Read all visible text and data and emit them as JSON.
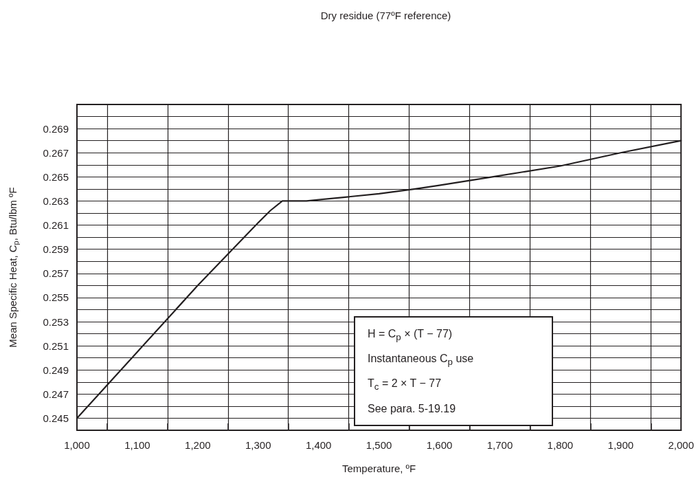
{
  "chart_data": {
    "type": "line",
    "title": "Dry residue (77ºF reference)",
    "xlabel": "Temperature, ºF",
    "ylabel": "Mean Specific Heat, C$_{p}$, Btu/lbm ºF",
    "x": [
      1000,
      1100,
      1200,
      1300,
      1320,
      1340,
      1380,
      1400,
      1500,
      1560,
      1600,
      1700,
      1800,
      1900,
      2000
    ],
    "series": [
      {
        "color": "#231f20",
        "values": [
          0.245,
          0.2505,
          0.256,
          0.2612,
          0.2622,
          0.263,
          0.263,
          0.2631,
          0.2636,
          0.264,
          0.2643,
          0.2651,
          0.2659,
          0.267,
          0.268
        ]
      }
    ],
    "xlim": [
      1000,
      2000
    ],
    "xticks": [
      {
        "value": 1000,
        "label": "1,000"
      },
      {
        "value": 1050,
        "label": null
      },
      {
        "value": 1100,
        "label": "1,100"
      },
      {
        "value": 1150,
        "label": null
      },
      {
        "value": 1200,
        "label": "1,200"
      },
      {
        "value": 1250,
        "label": null
      },
      {
        "value": 1300,
        "label": "1,300"
      },
      {
        "value": 1350,
        "label": null
      },
      {
        "value": 1400,
        "label": "1,400"
      },
      {
        "value": 1450,
        "label": null
      },
      {
        "value": 1500,
        "label": "1,500"
      },
      {
        "value": 1550,
        "label": null
      },
      {
        "value": 1600,
        "label": "1,600"
      },
      {
        "value": 1650,
        "label": null
      },
      {
        "value": 1700,
        "label": "1,700"
      },
      {
        "value": 1750,
        "label": null
      },
      {
        "value": 1800,
        "label": "1,800"
      },
      {
        "value": 1850,
        "label": null
      },
      {
        "value": 1900,
        "label": "1,900"
      },
      {
        "value": 1950,
        "label": null
      },
      {
        "value": 2000,
        "label": "2,000"
      }
    ],
    "ylim": [
      0.244,
      0.271
    ],
    "yticks": [
      {
        "value": 0.244,
        "label": null
      },
      0.245,
      {
        "value": 0.246,
        "label": null
      },
      0.247,
      {
        "value": 0.248,
        "label": null
      },
      0.249,
      {
        "value": 0.25,
        "label": null
      },
      0.251,
      {
        "value": 0.252,
        "label": null
      },
      0.253,
      {
        "value": 0.254,
        "label": null
      },
      0.255,
      {
        "value": 0.256,
        "label": null
      },
      0.257,
      {
        "value": 0.258,
        "label": null
      },
      0.259,
      {
        "value": 0.26,
        "label": null
      },
      0.261,
      {
        "value": 0.262,
        "label": null
      },
      0.263,
      {
        "value": 0.264,
        "label": null
      },
      0.265,
      {
        "value": 0.266,
        "label": null
      },
      0.267,
      {
        "value": 0.268,
        "label": null
      },
      0.269,
      {
        "value": 0.27,
        "label": null
      },
      {
        "value": 0.271,
        "label": null
      }
    ],
    "grid": true,
    "marker": "none",
    "line_style": "solid",
    "annotations": [
      "H = C$_{p}$ × (T − 77)",
      "Instantaneous C$_{p}$ use",
      "T$_{c}$ = 2 × T − 77",
      "See para. 5-19.19"
    ]
  }
}
